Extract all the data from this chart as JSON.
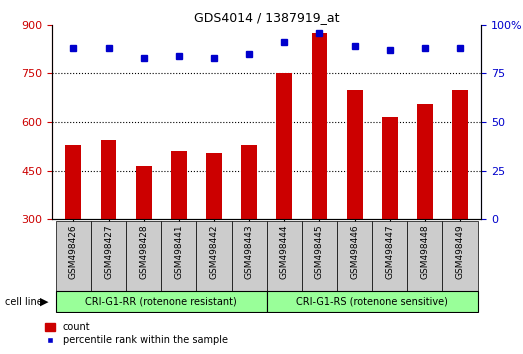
{
  "title": "GDS4014 / 1387919_at",
  "categories": [
    "GSM498426",
    "GSM498427",
    "GSM498428",
    "GSM498441",
    "GSM498442",
    "GSM498443",
    "GSM498444",
    "GSM498445",
    "GSM498446",
    "GSM498447",
    "GSM498448",
    "GSM498449"
  ],
  "bar_values": [
    530,
    545,
    465,
    510,
    505,
    530,
    750,
    875,
    700,
    615,
    655,
    700
  ],
  "dot_values": [
    88,
    88,
    83,
    84,
    83,
    85,
    91,
    96,
    89,
    87,
    88,
    88
  ],
  "bar_color": "#cc0000",
  "dot_color": "#0000cc",
  "ylim_left": [
    300,
    900
  ],
  "ylim_right": [
    0,
    100
  ],
  "yticks_left": [
    300,
    450,
    600,
    750,
    900
  ],
  "yticks_right": [
    0,
    25,
    50,
    75,
    100
  ],
  "group1_label": "CRI-G1-RR (rotenone resistant)",
  "group2_label": "CRI-G1-RS (rotenone sensitive)",
  "group1_count": 6,
  "group2_count": 6,
  "cell_line_label": "cell line",
  "legend_bar": "count",
  "legend_dot": "percentile rank within the sample",
  "grid_values": [
    450,
    600,
    750
  ],
  "plot_bg_color": "#ffffff",
  "group_bg_color": "#99ff99",
  "xticklabel_bg": "#cccccc",
  "bar_width": 0.45
}
